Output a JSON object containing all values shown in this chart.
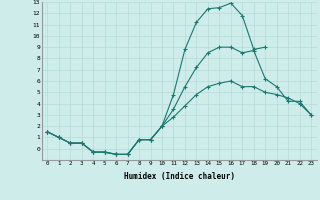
{
  "xlabel": "Humidex (Indice chaleur)",
  "background_color": "#ceecea",
  "grid_color": "#b8dbd8",
  "line_color": "#1a7870",
  "xlim": [
    -0.5,
    23.5
  ],
  "ylim": [
    -1,
    13
  ],
  "xticks": [
    0,
    1,
    2,
    3,
    4,
    5,
    6,
    7,
    8,
    9,
    10,
    11,
    12,
    13,
    14,
    15,
    16,
    17,
    18,
    19,
    20,
    21,
    22,
    23
  ],
  "yticks": [
    0,
    1,
    2,
    3,
    4,
    5,
    6,
    7,
    8,
    9,
    10,
    11,
    12,
    13
  ],
  "line1_x": [
    0,
    1,
    2,
    3,
    4,
    5,
    6,
    7,
    8,
    9,
    10,
    11,
    12,
    13,
    14,
    15,
    16,
    17,
    18,
    19
  ],
  "line1_y": [
    1.5,
    1.0,
    0.5,
    0.5,
    -0.3,
    -0.3,
    -0.5,
    -0.5,
    0.8,
    0.8,
    2.0,
    4.8,
    8.8,
    11.2,
    12.4,
    12.5,
    12.9,
    11.8,
    8.8,
    9.0
  ],
  "line2_x": [
    0,
    1,
    2,
    3,
    4,
    5,
    6,
    7,
    8,
    9,
    10,
    11,
    12,
    13,
    14,
    15,
    16,
    17,
    18,
    19,
    20,
    21,
    22,
    23
  ],
  "line2_y": [
    1.5,
    1.0,
    0.5,
    0.5,
    -0.3,
    -0.3,
    -0.5,
    -0.5,
    0.8,
    0.8,
    2.0,
    3.5,
    5.5,
    7.2,
    8.5,
    9.0,
    9.0,
    8.5,
    8.7,
    6.2,
    5.5,
    4.2,
    4.2,
    3.0
  ],
  "line3_x": [
    0,
    1,
    2,
    3,
    4,
    5,
    6,
    7,
    8,
    9,
    10,
    11,
    12,
    13,
    14,
    15,
    16,
    17,
    18,
    19,
    20,
    21,
    22,
    23
  ],
  "line3_y": [
    1.5,
    1.0,
    0.5,
    0.5,
    -0.3,
    -0.3,
    -0.5,
    -0.5,
    0.8,
    0.8,
    2.0,
    2.8,
    3.8,
    4.8,
    5.5,
    5.8,
    6.0,
    5.5,
    5.5,
    5.0,
    4.8,
    4.5,
    4.0,
    3.0
  ]
}
